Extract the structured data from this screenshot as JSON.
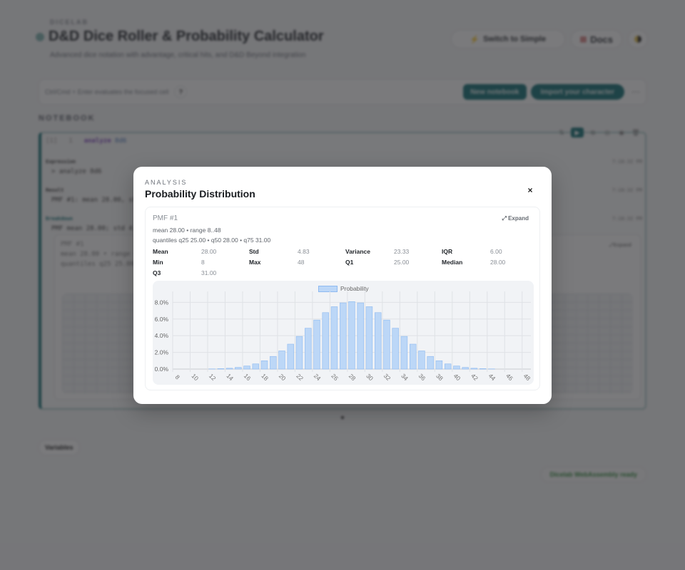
{
  "page": {
    "brand": "DICELAB",
    "title": "D&D Dice Roller & Probability Calculator",
    "subtitle": "Advanced dice notation with advantage, critical hits, and D&D Beyond integration",
    "actions": {
      "switch_label": "Switch to Simple",
      "switch_icon": "bolt-icon",
      "docs_label": "Docs",
      "docs_icon": "book-icon",
      "theme_icon": "half-moon-icon"
    },
    "toolbar": {
      "hint": "Ctrl/Cmd + Enter evaluates the focused cell",
      "help_label": "?",
      "new_notebook": "New notebook",
      "import_character": "Import your character",
      "more_label": "⋯"
    },
    "notebook_label": "NOTEBOOK",
    "cell": {
      "index": "[1]",
      "line": "1",
      "keyword": "analyze",
      "argument": "8d6",
      "tools": [
        "⇅",
        "▶",
        "⧉",
        "◎",
        "◉",
        "🗑"
      ],
      "outputs": [
        {
          "label": "Expression",
          "text": "> analyze 8d6",
          "time": "7:18:32 PM"
        },
        {
          "label": "Result",
          "text": "PMF #1: mean 28.00, std 4.83",
          "time": "7:18:32 PM"
        },
        {
          "label": "Breakdown",
          "text": "PMF mean 28.00; std 4.83",
          "time": "7:18:32 PM"
        }
      ],
      "inner": {
        "name": "PMF #1",
        "line1": "mean 28.00 • range 8..48",
        "line2": "quantiles q25 25.00 • q50 28.00 • q75 31.00",
        "expand": "⤢Expand"
      }
    },
    "variables_label": "Variables",
    "status": "Dicelab WebAssembly ready"
  },
  "modal": {
    "kicker": "ANALYSIS",
    "title": "Probability Distribution",
    "close_label": "×",
    "card": {
      "name": "PMF #1",
      "expand_label": "⤢ Expand",
      "summary": "mean 28.00 • range 8..48",
      "quantiles": "quantiles q25 25.00 • q50 28.00 • q75 31.00",
      "stats": [
        {
          "k": "Mean",
          "v": "28.00"
        },
        {
          "k": "Std",
          "v": "4.83"
        },
        {
          "k": "Variance",
          "v": "23.33"
        },
        {
          "k": "IQR",
          "v": "6.00"
        },
        {
          "k": "Min",
          "v": "8"
        },
        {
          "k": "Max",
          "v": "48"
        },
        {
          "k": "Q1",
          "v": "25.00"
        },
        {
          "k": "Median",
          "v": "28.00"
        },
        {
          "k": "Q3",
          "v": "31.00"
        }
      ]
    }
  },
  "colors": {
    "accent": "#0f6e73",
    "bar_fill": "#bcd7f7",
    "bar_border": "#8fbaf0",
    "overlay": "rgba(40,40,44,0.62)"
  },
  "chart_data": {
    "type": "bar",
    "title": "",
    "legend": [
      "Probability"
    ],
    "legend_position": "top",
    "xlabel": "",
    "ylabel": "",
    "grid": true,
    "ylim": [
      0,
      8.8
    ],
    "y_ticks": [
      "0.0%",
      "2.0%",
      "4.0%",
      "6.0%",
      "8.0%"
    ],
    "x_tick_labels": [
      "8",
      "10",
      "12",
      "14",
      "16",
      "18",
      "20",
      "22",
      "24",
      "26",
      "28",
      "30",
      "32",
      "34",
      "36",
      "38",
      "40",
      "42",
      "44",
      "46",
      "48"
    ],
    "categories": [
      8,
      9,
      10,
      11,
      12,
      13,
      14,
      15,
      16,
      17,
      18,
      19,
      20,
      21,
      22,
      23,
      24,
      25,
      26,
      27,
      28,
      29,
      30,
      31,
      32,
      33,
      34,
      35,
      36,
      37,
      38,
      39,
      40,
      41,
      42,
      43,
      44,
      45,
      46,
      47,
      48
    ],
    "series": [
      {
        "name": "Probability",
        "unit": "%",
        "values": [
          0.0,
          0.0,
          0.0,
          0.01,
          0.02,
          0.05,
          0.1,
          0.2,
          0.37,
          0.62,
          1.0,
          1.52,
          2.18,
          2.99,
          3.92,
          4.9,
          5.88,
          6.77,
          7.48,
          7.94,
          8.09,
          7.94,
          7.48,
          6.77,
          5.88,
          4.9,
          3.92,
          2.99,
          2.18,
          1.52,
          1.0,
          0.62,
          0.37,
          0.2,
          0.1,
          0.05,
          0.02,
          0.01,
          0.0,
          0.0,
          0.0
        ]
      }
    ]
  }
}
